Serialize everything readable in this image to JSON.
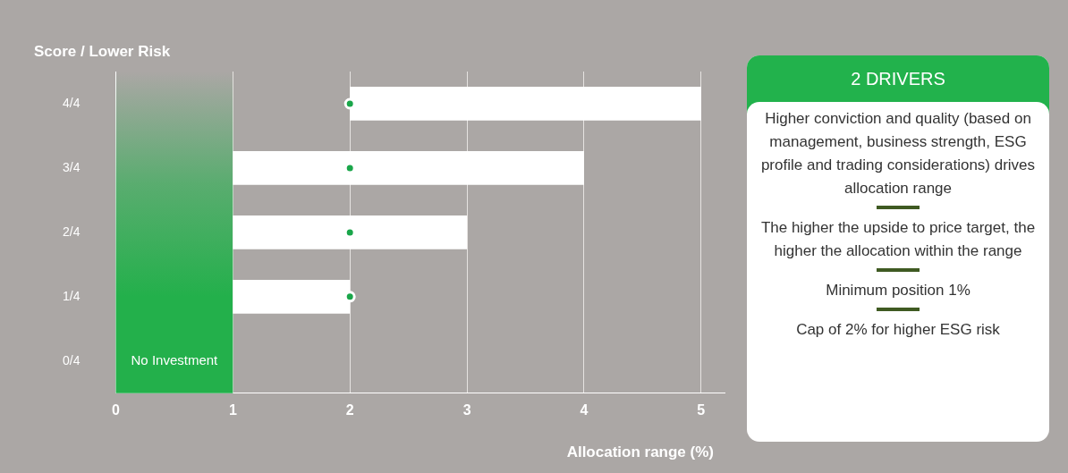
{
  "chart_data": [
    {
      "type": "bar",
      "orientation": "horizontal",
      "ylabel": "Score / Lower Risk",
      "xlabel": "Allocation range (%)",
      "categories": [
        "4/4",
        "3/4",
        "2/4",
        "1/4",
        "0/4"
      ],
      "series": [
        {
          "type": "bar",
          "color": "#ffffff",
          "base": [
            2,
            1,
            1,
            1,
            null
          ],
          "values": [
            3,
            3,
            2,
            1,
            null
          ]
        },
        {
          "type": "scatter",
          "color": "#1aa64a",
          "values": [
            2,
            2,
            2,
            2,
            null
          ]
        }
      ],
      "marker": "circle",
      "xlim": [
        0,
        5.2
      ],
      "xticks": [
        0,
        1,
        2,
        3,
        4,
        5
      ],
      "grid": "x",
      "legend": false,
      "bands": [
        {
          "axis": "x",
          "from": 0,
          "to": 1,
          "label": "No Investment",
          "color": "#23b04b"
        }
      ]
    },
    {
      "type": "other",
      "title": "2 DRIVERS",
      "annotations": [
        "Higher conviction and quality (based on management, business strength, ESG profile and trading considerations) drives allocation range",
        "The higher the upside to price target, the higher the allocation within the range",
        "Minimum position 1%",
        "Cap of 2% for higher ESG risk"
      ]
    }
  ]
}
